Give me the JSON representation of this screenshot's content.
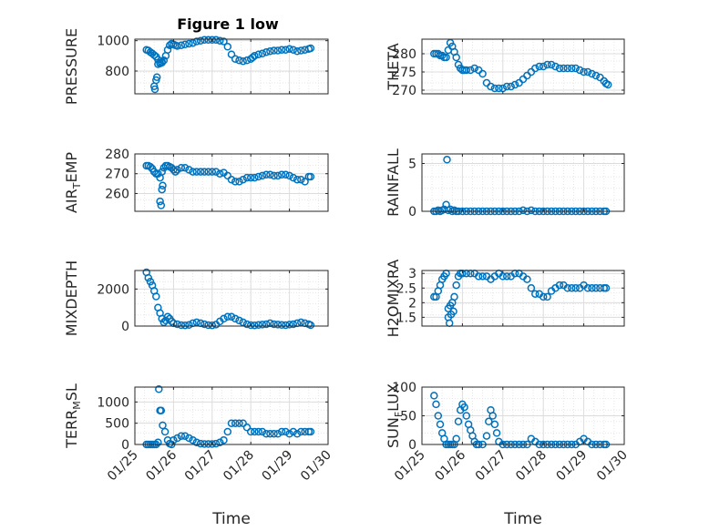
{
  "figure": {
    "title": "Figure 1 low"
  },
  "chart_data": [
    {
      "type": "scatter",
      "ylabel": "PRESSURE",
      "ylim": [
        650,
        1010
      ],
      "yticks": [
        800,
        1000
      ],
      "grid": "on",
      "xlim": [
        0,
        5
      ],
      "xticks": [
        0,
        1,
        2,
        3,
        4,
        5
      ],
      "xticklabels": [
        "01/25",
        "01/26",
        "01/27",
        "01/28",
        "01/29",
        "01/30"
      ],
      "xlabel": "",
      "series": [
        {
          "x": [
            0.3,
            0.35,
            0.4,
            0.45,
            0.5,
            0.55,
            0.6,
            0.65,
            0.7,
            0.75,
            0.8,
            0.85,
            0.9,
            0.95,
            1.0,
            1.05,
            1.1,
            1.2,
            1.3,
            1.4,
            1.5,
            1.6,
            1.7,
            1.8,
            1.9,
            2.0,
            2.1,
            2.2,
            2.3,
            2.4,
            2.5,
            2.6,
            2.7,
            2.8,
            2.9,
            3.0,
            3.05,
            3.1,
            3.2,
            3.3,
            3.4,
            3.5,
            3.6,
            3.7,
            3.8,
            3.9,
            4.0,
            4.1,
            4.2,
            4.3,
            4.4,
            4.5,
            4.55,
            0.5,
            0.52,
            0.55,
            0.57,
            0.6,
            0.65,
            0.7
          ],
          "y": [
            940,
            935,
            925,
            915,
            905,
            895,
            875,
            850,
            855,
            870,
            900,
            940,
            970,
            980,
            975,
            970,
            965,
            970,
            975,
            980,
            985,
            995,
            1000,
            1005,
            1005,
            1005,
            1005,
            1000,
            995,
            960,
            910,
            880,
            870,
            865,
            870,
            880,
            890,
            900,
            910,
            915,
            925,
            930,
            935,
            935,
            940,
            940,
            945,
            940,
            930,
            935,
            940,
            945,
            950,
            700,
            680,
            740,
            760,
            845,
            855,
            860
          ]
        }
      ]
    },
    {
      "type": "scatter",
      "ylabel": "THETA",
      "ylim": [
        269,
        284
      ],
      "yticks": [
        270,
        275,
        280
      ],
      "grid": "on",
      "xlim": [
        0,
        5
      ],
      "xticks": [
        0,
        1,
        2,
        3,
        4,
        5
      ],
      "xticklabels": [
        "01/25",
        "01/26",
        "01/27",
        "01/28",
        "01/29",
        "01/30"
      ],
      "xlabel": "",
      "series": [
        {
          "x": [
            0.3,
            0.35,
            0.4,
            0.45,
            0.5,
            0.55,
            0.6,
            0.65,
            0.7,
            0.75,
            0.8,
            0.85,
            0.9,
            0.95,
            1.0,
            1.05,
            1.1,
            1.2,
            1.3,
            1.4,
            1.5,
            1.6,
            1.7,
            1.8,
            1.9,
            2.0,
            2.1,
            2.2,
            2.3,
            2.4,
            2.5,
            2.6,
            2.7,
            2.8,
            2.9,
            3.0,
            3.1,
            3.2,
            3.3,
            3.4,
            3.5,
            3.6,
            3.7,
            3.8,
            3.9,
            4.0,
            4.1,
            4.2,
            4.3,
            4.4,
            4.5,
            4.55,
            4.6
          ],
          "y": [
            280,
            280,
            280,
            279.5,
            279.5,
            279,
            279,
            281,
            283,
            282,
            280.5,
            279,
            277,
            276,
            275.5,
            275.5,
            275.5,
            275.5,
            276,
            275.5,
            274.5,
            272,
            271,
            270.5,
            270.5,
            270.5,
            271,
            271,
            271.5,
            272,
            273,
            274,
            275,
            276,
            276.5,
            276.5,
            277,
            277,
            276.5,
            276,
            276,
            276,
            276,
            276,
            275.5,
            275,
            275,
            274.5,
            274,
            273.5,
            272.5,
            271.8,
            271.5
          ]
        }
      ]
    },
    {
      "type": "scatter",
      "ylabel": "AIR_TEMP",
      "ylim": [
        251,
        280
      ],
      "yticks": [
        260,
        270,
        280
      ],
      "grid": "on",
      "xlim": [
        0,
        5
      ],
      "xticks": [
        0,
        1,
        2,
        3,
        4,
        5
      ],
      "xticklabels": [
        "01/25",
        "01/26",
        "01/27",
        "01/28",
        "01/29",
        "01/30"
      ],
      "xlabel": "",
      "series": [
        {
          "x": [
            0.3,
            0.35,
            0.4,
            0.45,
            0.5,
            0.55,
            0.6,
            0.65,
            0.7,
            0.75,
            0.8,
            0.85,
            0.9,
            0.95,
            1.0,
            1.05,
            1.1,
            1.2,
            1.3,
            1.4,
            1.5,
            1.6,
            1.7,
            1.8,
            1.9,
            2.0,
            2.1,
            2.2,
            2.3,
            2.4,
            2.5,
            2.6,
            2.7,
            2.8,
            2.9,
            3.0,
            3.1,
            3.2,
            3.3,
            3.4,
            3.5,
            3.6,
            3.7,
            3.8,
            3.9,
            4.0,
            4.1,
            4.2,
            4.3,
            4.4,
            4.5,
            4.55,
            0.65,
            0.68,
            0.7,
            0.72
          ],
          "y": [
            274,
            274,
            273.5,
            272.5,
            271,
            270,
            270,
            268,
            271,
            273,
            274,
            274,
            273.5,
            273,
            272,
            271,
            272,
            273,
            273,
            272,
            271,
            271,
            271,
            271,
            271,
            271,
            271,
            270,
            270.5,
            269,
            267,
            266,
            266,
            267,
            268,
            268,
            268,
            268.5,
            269,
            269.5,
            269.5,
            269,
            269,
            269.5,
            269.5,
            269,
            268,
            267,
            267,
            266,
            268.5,
            268.5,
            256,
            254,
            262,
            264
          ]
        }
      ]
    },
    {
      "type": "scatter",
      "ylabel": "RAINFALL",
      "ylim": [
        0,
        6
      ],
      "yticks": [
        0,
        5
      ],
      "grid": "on",
      "xlim": [
        0,
        5
      ],
      "xticks": [
        0,
        1,
        2,
        3,
        4,
        5
      ],
      "xticklabels": [
        "01/25",
        "01/26",
        "01/27",
        "01/28",
        "01/29",
        "01/30"
      ],
      "xlabel": "",
      "series": [
        {
          "x": [
            0.3,
            0.35,
            0.4,
            0.45,
            0.5,
            0.55,
            0.6,
            0.62,
            0.65,
            0.7,
            0.75,
            0.8,
            0.85,
            0.9,
            1.0,
            1.1,
            1.2,
            1.3,
            1.4,
            1.5,
            1.6,
            1.7,
            1.8,
            1.9,
            2.0,
            2.1,
            2.2,
            2.3,
            2.4,
            2.5,
            2.6,
            2.7,
            2.8,
            2.9,
            3.0,
            3.1,
            3.2,
            3.3,
            3.4,
            3.5,
            3.6,
            3.7,
            3.8,
            3.9,
            4.0,
            4.1,
            4.2,
            4.3,
            4.4,
            4.5,
            4.55
          ],
          "y": [
            0,
            0,
            0.1,
            0,
            0.1,
            0.2,
            0.7,
            5.4,
            0.1,
            0.2,
            0,
            0.1,
            0,
            0,
            0,
            0,
            0,
            0,
            0,
            0,
            0,
            0,
            0,
            0,
            0,
            0,
            0,
            0,
            0,
            0.1,
            0,
            0.1,
            0,
            0,
            0,
            0,
            0,
            0,
            0,
            0,
            0,
            0,
            0,
            0,
            0,
            0,
            0,
            0,
            0,
            0,
            0
          ]
        }
      ]
    },
    {
      "type": "scatter",
      "ylabel": "MIXDEPTH",
      "ylim": [
        0,
        3000
      ],
      "yticks": [
        0,
        2000
      ],
      "grid": "on",
      "xlim": [
        0,
        5
      ],
      "xticks": [
        0,
        1,
        2,
        3,
        4,
        5
      ],
      "xticklabels": [
        "01/25",
        "01/26",
        "01/27",
        "01/28",
        "01/29",
        "01/30"
      ],
      "xlabel": "",
      "series": [
        {
          "x": [
            0.3,
            0.35,
            0.4,
            0.45,
            0.5,
            0.55,
            0.6,
            0.65,
            0.7,
            0.75,
            0.8,
            0.85,
            0.9,
            0.95,
            1.0,
            1.1,
            1.2,
            1.3,
            1.4,
            1.5,
            1.6,
            1.7,
            1.8,
            1.9,
            2.0,
            2.1,
            2.2,
            2.3,
            2.4,
            2.5,
            2.6,
            2.7,
            2.8,
            2.9,
            3.0,
            3.1,
            3.2,
            3.3,
            3.4,
            3.5,
            3.6,
            3.7,
            3.8,
            3.9,
            4.0,
            4.1,
            4.2,
            4.3,
            4.4,
            4.5,
            4.55
          ],
          "y": [
            2900,
            2600,
            2400,
            2200,
            1900,
            1600,
            1000,
            700,
            400,
            200,
            300,
            500,
            400,
            250,
            150,
            100,
            50,
            40,
            60,
            150,
            200,
            150,
            100,
            50,
            40,
            80,
            250,
            400,
            500,
            500,
            400,
            300,
            200,
            100,
            50,
            40,
            60,
            80,
            100,
            150,
            100,
            80,
            60,
            50,
            80,
            100,
            150,
            200,
            150,
            100,
            50
          ]
        }
      ]
    },
    {
      "type": "scatter",
      "ylabel": "H2OMIXRA",
      "ylim": [
        1.2,
        3.1
      ],
      "yticks": [
        1.5,
        2,
        2.5,
        3
      ],
      "grid": "on",
      "xlim": [
        0,
        5
      ],
      "xticks": [
        0,
        1,
        2,
        3,
        4,
        5
      ],
      "xticklabels": [
        "01/25",
        "01/26",
        "01/27",
        "01/28",
        "01/29",
        "01/30"
      ],
      "xlabel": "",
      "series": [
        {
          "x": [
            0.3,
            0.35,
            0.4,
            0.45,
            0.5,
            0.55,
            0.6,
            0.65,
            0.7,
            0.75,
            0.8,
            0.85,
            0.9,
            0.95,
            1.0,
            1.1,
            1.2,
            1.3,
            1.4,
            1.5,
            1.6,
            1.7,
            1.8,
            1.9,
            2.0,
            2.1,
            2.2,
            2.3,
            2.4,
            2.5,
            2.6,
            2.7,
            2.8,
            2.9,
            3.0,
            3.1,
            3.2,
            3.3,
            3.4,
            3.5,
            3.6,
            3.7,
            3.8,
            3.9,
            4.0,
            4.1,
            4.2,
            4.3,
            4.4,
            4.5,
            4.55,
            0.65,
            0.68,
            0.72,
            0.78
          ],
          "y": [
            2.2,
            2.2,
            2.4,
            2.6,
            2.8,
            2.9,
            3.0,
            1.8,
            1.9,
            2.0,
            2.2,
            2.6,
            2.9,
            3.0,
            3.0,
            3.0,
            3.0,
            3.0,
            2.9,
            2.9,
            2.9,
            2.8,
            2.9,
            3.0,
            2.9,
            2.9,
            2.9,
            3.0,
            3.0,
            2.9,
            2.8,
            2.5,
            2.3,
            2.3,
            2.2,
            2.2,
            2.4,
            2.5,
            2.6,
            2.6,
            2.5,
            2.5,
            2.5,
            2.5,
            2.6,
            2.5,
            2.5,
            2.5,
            2.5,
            2.5,
            2.5,
            1.5,
            1.3,
            1.6,
            1.7
          ]
        }
      ]
    },
    {
      "type": "scatter",
      "ylabel": "TERR_MSL",
      "ylim": [
        0,
        1350
      ],
      "yticks": [
        0,
        500,
        1000
      ],
      "grid": "on",
      "xlim": [
        0,
        5
      ],
      "xticks": [
        0,
        1,
        2,
        3,
        4,
        5
      ],
      "xticklabels": [
        "01/25",
        "01/26",
        "01/27",
        "01/28",
        "01/29",
        "01/30"
      ],
      "xlabel": "Time",
      "series": [
        {
          "x": [
            0.3,
            0.35,
            0.4,
            0.45,
            0.5,
            0.55,
            0.6,
            0.62,
            0.65,
            0.68,
            0.72,
            0.78,
            0.85,
            0.9,
            0.95,
            1.0,
            1.1,
            1.2,
            1.3,
            1.4,
            1.5,
            1.6,
            1.7,
            1.8,
            1.9,
            2.0,
            2.1,
            2.2,
            2.3,
            2.4,
            2.5,
            2.6,
            2.7,
            2.8,
            2.9,
            3.0,
            3.1,
            3.2,
            3.3,
            3.4,
            3.5,
            3.6,
            3.7,
            3.8,
            3.9,
            4.0,
            4.1,
            4.2,
            4.3,
            4.4,
            4.5,
            4.55
          ],
          "y": [
            0,
            0,
            0,
            0,
            0,
            0,
            50,
            1300,
            800,
            800,
            450,
            300,
            100,
            20,
            0,
            100,
            150,
            200,
            200,
            150,
            100,
            50,
            20,
            10,
            10,
            10,
            20,
            50,
            100,
            300,
            500,
            500,
            500,
            500,
            400,
            300,
            300,
            300,
            300,
            250,
            250,
            250,
            250,
            300,
            300,
            250,
            300,
            250,
            300,
            300,
            300,
            300
          ]
        }
      ]
    },
    {
      "type": "scatter",
      "ylabel": "SUN_FLUX",
      "ylim": [
        0,
        100
      ],
      "yticks": [
        0,
        50,
        100
      ],
      "grid": "on",
      "xlim": [
        0,
        5
      ],
      "xticks": [
        0,
        1,
        2,
        3,
        4,
        5
      ],
      "xticklabels": [
        "01/25",
        "01/26",
        "01/27",
        "01/28",
        "01/29",
        "01/30"
      ],
      "xlabel": "Time",
      "series": [
        {
          "x": [
            0.3,
            0.35,
            0.4,
            0.45,
            0.5,
            0.55,
            0.6,
            0.65,
            0.7,
            0.75,
            0.8,
            0.85,
            0.9,
            0.95,
            1.0,
            1.05,
            1.1,
            1.15,
            1.2,
            1.25,
            1.3,
            1.35,
            1.4,
            1.5,
            1.6,
            1.65,
            1.7,
            1.75,
            1.8,
            1.85,
            1.9,
            2.0,
            2.1,
            2.2,
            2.3,
            2.4,
            2.5,
            2.6,
            2.7,
            2.8,
            2.9,
            3.0,
            3.1,
            3.2,
            3.3,
            3.4,
            3.5,
            3.6,
            3.7,
            3.8,
            3.9,
            4.0,
            4.1,
            4.2,
            4.3,
            4.4,
            4.5,
            4.55
          ],
          "y": [
            85,
            70,
            50,
            35,
            20,
            10,
            0,
            0,
            0,
            0,
            0,
            10,
            40,
            60,
            70,
            65,
            50,
            35,
            25,
            15,
            5,
            0,
            0,
            0,
            15,
            40,
            60,
            50,
            35,
            20,
            5,
            0,
            0,
            0,
            0,
            0,
            0,
            0,
            10,
            5,
            0,
            0,
            0,
            0,
            0,
            0,
            0,
            0,
            0,
            0,
            5,
            10,
            5,
            0,
            0,
            0,
            0,
            0
          ]
        }
      ]
    }
  ]
}
